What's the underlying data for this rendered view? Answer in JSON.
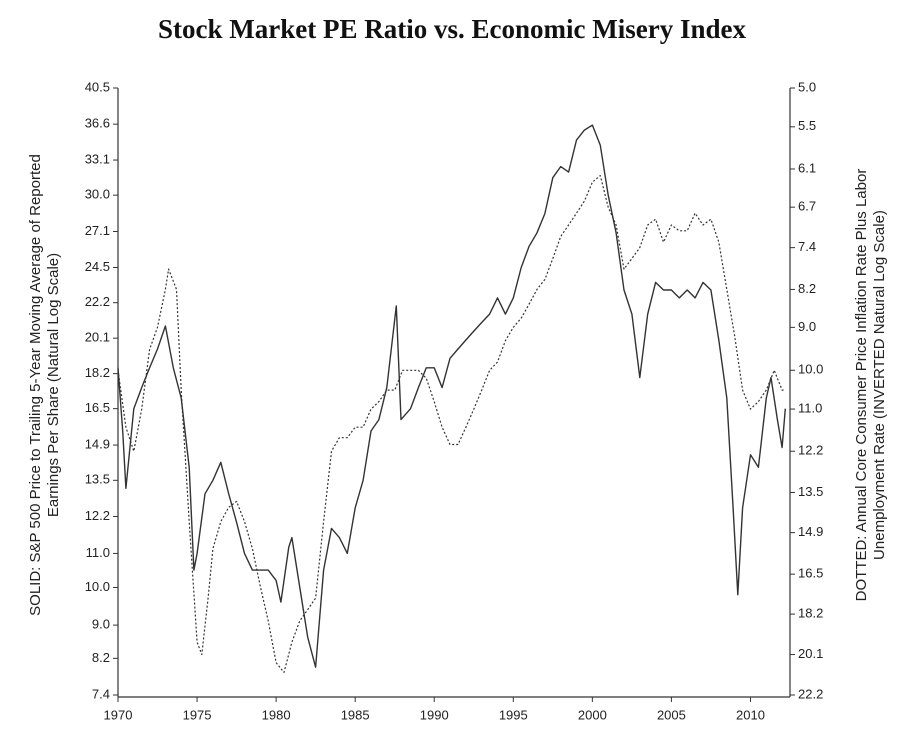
{
  "chart_data": {
    "type": "line",
    "title": "Stock Market PE Ratio vs. Economic Misery Index",
    "ylabel": [
      "SOLID: S&P 500 Price to Trailing 5-Year Moving Average of Reported",
      "Earnings Per Share (Natural Log Scale)"
    ],
    "y2label": [
      "DOTTED: Annual Core Consumer Price Inflation Rate Plus Labor",
      "Unemployment Rate (INVERTED Natural Log Scale)"
    ],
    "log_scale": true,
    "y2_inverted": true,
    "y2_log_scale": true,
    "xlim": [
      1970,
      2012.5
    ],
    "xticks": [
      1970,
      1975,
      1980,
      1985,
      1990,
      1995,
      2000,
      2005,
      2010
    ],
    "ylim": [
      7.4,
      40.5
    ],
    "yticks": [
      40.5,
      36.6,
      33.1,
      {
        "value": 30,
        "label": "30.0"
      },
      27.1,
      24.5,
      22.2,
      20.1,
      18.2,
      16.5,
      14.9,
      13.5,
      12.2,
      {
        "value": 11,
        "label": "11.0"
      },
      {
        "value": 10,
        "label": "10.0"
      },
      {
        "value": 9,
        "label": "9.0"
      },
      8.2,
      7.4
    ],
    "y2lim": [
      5,
      22.2
    ],
    "y2ticks": [
      {
        "value": 5,
        "label": "5.0"
      },
      5.5,
      6.1,
      6.7,
      7.4,
      8.2,
      {
        "value": 9,
        "label": "9.0"
      },
      {
        "value": 10,
        "label": "10.0"
      },
      {
        "value": 11,
        "label": "11.0"
      },
      12.2,
      13.5,
      14.9,
      16.5,
      18.2,
      20.1,
      22.2
    ],
    "series": [
      {
        "style": "solid",
        "color": "#333333",
        "axis": "y",
        "x": [
          1970,
          1970.3,
          1970.5,
          1971,
          1971.5,
          1972,
          1972.5,
          1973,
          1973.5,
          1974,
          1974.5,
          1974.8,
          1975,
          1975.5,
          1976,
          1976.5,
          1977,
          1977.5,
          1978,
          1978.5,
          1979,
          1979.5,
          1980,
          1980.3,
          1980.8,
          1981,
          1981.5,
          1982,
          1982.5,
          1983,
          1983.5,
          1984,
          1984.5,
          1985,
          1985.5,
          1986,
          1986.5,
          1987,
          1987.6,
          1987.9,
          1988.5,
          1989,
          1989.5,
          1990,
          1990.5,
          1991,
          1991.5,
          1992,
          1992.5,
          1993,
          1993.5,
          1994,
          1994.5,
          1995,
          1995.5,
          1996,
          1996.5,
          1997,
          1997.5,
          1998,
          1998.5,
          1999,
          1999.5,
          2000,
          2000.5,
          2001,
          2001.5,
          2002,
          2002.5,
          2003,
          2003.5,
          2004,
          2004.5,
          2005,
          2005.5,
          2006,
          2006.5,
          2007,
          2007.5,
          2008,
          2008.5,
          2008.9,
          2009.2,
          2009.5,
          2010,
          2010.5,
          2011,
          2011.3,
          2011.7,
          2012,
          2012.2
        ],
        "values": [
          18.5,
          15.5,
          13.2,
          16.5,
          17.5,
          18.5,
          19.5,
          20.8,
          18.5,
          17,
          14,
          10.5,
          11,
          13,
          13.5,
          14.2,
          13,
          12,
          11,
          10.5,
          10.5,
          10.5,
          10.2,
          9.6,
          11.2,
          11.5,
          10,
          8.7,
          8,
          10.5,
          11.8,
          11.5,
          11,
          12.5,
          13.5,
          15.5,
          16,
          17.5,
          22,
          16,
          16.5,
          17.5,
          18.5,
          18.5,
          17.5,
          19,
          19.5,
          20,
          20.5,
          21,
          21.5,
          22.5,
          21.5,
          22.5,
          24.5,
          26,
          27,
          28.5,
          31.5,
          32.5,
          32,
          35,
          36,
          36.5,
          34.5,
          30,
          27,
          23,
          21.5,
          18,
          21.5,
          23.5,
          23,
          23,
          22.5,
          23,
          22.5,
          23.5,
          23,
          20,
          17,
          12.5,
          9.8,
          12.5,
          14.5,
          14,
          17,
          18,
          16,
          14.8,
          16.5
        ]
      },
      {
        "style": "dotted",
        "color": "#333333",
        "axis": "y2",
        "x": [
          1970,
          1970.5,
          1971,
          1971.5,
          1972,
          1972.5,
          1973,
          1973.2,
          1973.7,
          1974,
          1974.5,
          1975,
          1975.3,
          1975.7,
          1976,
          1976.5,
          1977,
          1977.5,
          1978,
          1978.5,
          1979,
          1979.5,
          1980,
          1980.5,
          1981,
          1981.5,
          1982,
          1982.5,
          1983,
          1983.5,
          1984,
          1984.5,
          1985,
          1985.5,
          1986,
          1986.5,
          1987,
          1987.5,
          1988,
          1988.5,
          1989,
          1989.5,
          1990,
          1990.5,
          1991,
          1991.5,
          1992,
          1992.5,
          1993,
          1993.5,
          1994,
          1994.5,
          1995,
          1995.5,
          1996,
          1996.5,
          1997,
          1997.5,
          1998,
          1998.5,
          1999,
          1999.5,
          2000,
          2000.5,
          2001,
          2001.5,
          2002,
          2002.5,
          2003,
          2003.5,
          2004,
          2004.5,
          2005,
          2005.5,
          2006,
          2006.5,
          2007,
          2007.5,
          2008,
          2008.5,
          2009,
          2009.5,
          2010,
          2010.5,
          2011,
          2011.5,
          2012,
          2012.2
        ],
        "values": [
          10,
          11.5,
          12.2,
          11,
          9.5,
          9,
          8.2,
          7.8,
          8.2,
          10.5,
          14.5,
          19.5,
          20.1,
          17.5,
          15.5,
          14.5,
          14,
          13.8,
          14.5,
          15.5,
          17,
          18.5,
          20.5,
          21,
          19.5,
          18.5,
          18,
          17.5,
          14.5,
          12.2,
          11.8,
          11.8,
          11.5,
          11.5,
          11,
          10.8,
          10.5,
          10.5,
          10,
          10,
          10,
          10.2,
          10.8,
          11.5,
          12,
          12,
          11.5,
          11,
          10.5,
          10,
          9.8,
          9.3,
          9,
          8.8,
          8.5,
          8.2,
          8,
          7.6,
          7.2,
          7,
          6.8,
          6.6,
          6.3,
          6.2,
          6.7,
          7,
          7.8,
          7.6,
          7.4,
          7,
          6.9,
          7.3,
          7,
          7.1,
          7.1,
          6.8,
          7,
          6.9,
          7.3,
          8.2,
          9.2,
          10.5,
          11,
          10.8,
          10.5,
          10,
          10.5,
          10.5
        ]
      }
    ]
  }
}
